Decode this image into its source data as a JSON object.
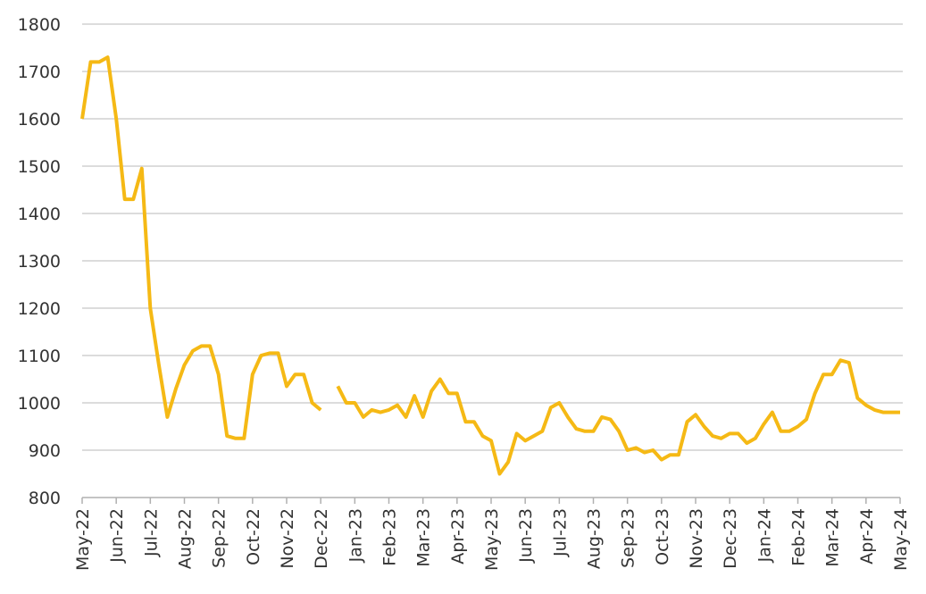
{
  "chart_data": {
    "type": "line",
    "xticks": [
      "May-22",
      "Jun-22",
      "Jul-22",
      "Aug-22",
      "Sep-22",
      "Oct-22",
      "Nov-22",
      "Dec-22",
      "Jan-23",
      "Feb-23",
      "Mar-23",
      "Apr-23",
      "May-23",
      "Jun-23",
      "Jul-23",
      "Aug-23",
      "Sep-23",
      "Oct-23",
      "Nov-23",
      "Dec-23",
      "Jan-24",
      "Feb-24",
      "Mar-24",
      "Apr-24",
      "May-24"
    ],
    "x": [
      "May-22",
      "May-22",
      "May-22",
      "May-22",
      "Jun-22",
      "Jun-22",
      "Jun-22",
      "Jun-22",
      "Jul-22",
      "Jul-22",
      "Jul-22",
      "Jul-22",
      "Aug-22",
      "Aug-22",
      "Aug-22",
      "Aug-22",
      "Sep-22",
      "Sep-22",
      "Sep-22",
      "Sep-22",
      "Oct-22",
      "Oct-22",
      "Oct-22",
      "Oct-22",
      "Nov-22",
      "Nov-22",
      "Nov-22",
      "Nov-22",
      "Dec-22",
      "Dec-22",
      "Dec-22",
      "Dec-22",
      "Jan-23",
      "Jan-23",
      "Jan-23",
      "Jan-23",
      "Feb-23",
      "Feb-23",
      "Feb-23",
      "Feb-23",
      "Mar-23",
      "Mar-23",
      "Mar-23",
      "Mar-23",
      "Apr-23",
      "Apr-23",
      "Apr-23",
      "Apr-23",
      "May-23",
      "May-23",
      "May-23",
      "May-23",
      "Jun-23",
      "Jun-23",
      "Jun-23",
      "Jun-23",
      "Jul-23",
      "Jul-23",
      "Jul-23",
      "Jul-23",
      "Aug-23",
      "Aug-23",
      "Aug-23",
      "Aug-23",
      "Sep-23",
      "Sep-23",
      "Sep-23",
      "Sep-23",
      "Oct-23",
      "Oct-23",
      "Oct-23",
      "Oct-23",
      "Nov-23",
      "Nov-23",
      "Nov-23",
      "Nov-23",
      "Dec-23",
      "Dec-23",
      "Dec-23",
      "Dec-23",
      "Jan-24",
      "Jan-24",
      "Jan-24",
      "Jan-24",
      "Feb-24",
      "Feb-24",
      "Feb-24",
      "Feb-24",
      "Mar-24",
      "Mar-24",
      "Mar-24",
      "Mar-24",
      "Apr-24",
      "Apr-24",
      "Apr-24",
      "Apr-24",
      "May-24"
    ],
    "series": [
      {
        "color": "#f5b915",
        "values": [
          1600,
          1720,
          1720,
          1730,
          1600,
          1430,
          1430,
          1495,
          1200,
          1080,
          970,
          1030,
          1080,
          1110,
          1120,
          1120,
          1060,
          930,
          925,
          925,
          1060,
          1100,
          1105,
          1105,
          1035,
          1060,
          1060,
          1000,
          985,
          null,
          1035,
          1000,
          1000,
          970,
          985,
          980,
          985,
          995,
          970,
          1015,
          970,
          1025,
          1050,
          1020,
          1020,
          960,
          960,
          930,
          920,
          850,
          875,
          935,
          920,
          930,
          940,
          990,
          1000,
          970,
          945,
          940,
          940,
          970,
          965,
          940,
          900,
          905,
          895,
          900,
          880,
          890,
          890,
          960,
          975,
          950,
          930,
          925,
          935,
          935,
          915,
          925,
          955,
          980,
          940,
          940,
          950,
          965,
          1020,
          1060,
          1060,
          1090,
          1085,
          1010,
          995,
          985,
          980,
          980,
          980
        ]
      }
    ],
    "ylim": [
      800,
      1800
    ],
    "yticks": [
      800,
      900,
      1000,
      1100,
      1200,
      1300,
      1400,
      1500,
      1600,
      1700,
      1800
    ],
    "grid": true
  }
}
